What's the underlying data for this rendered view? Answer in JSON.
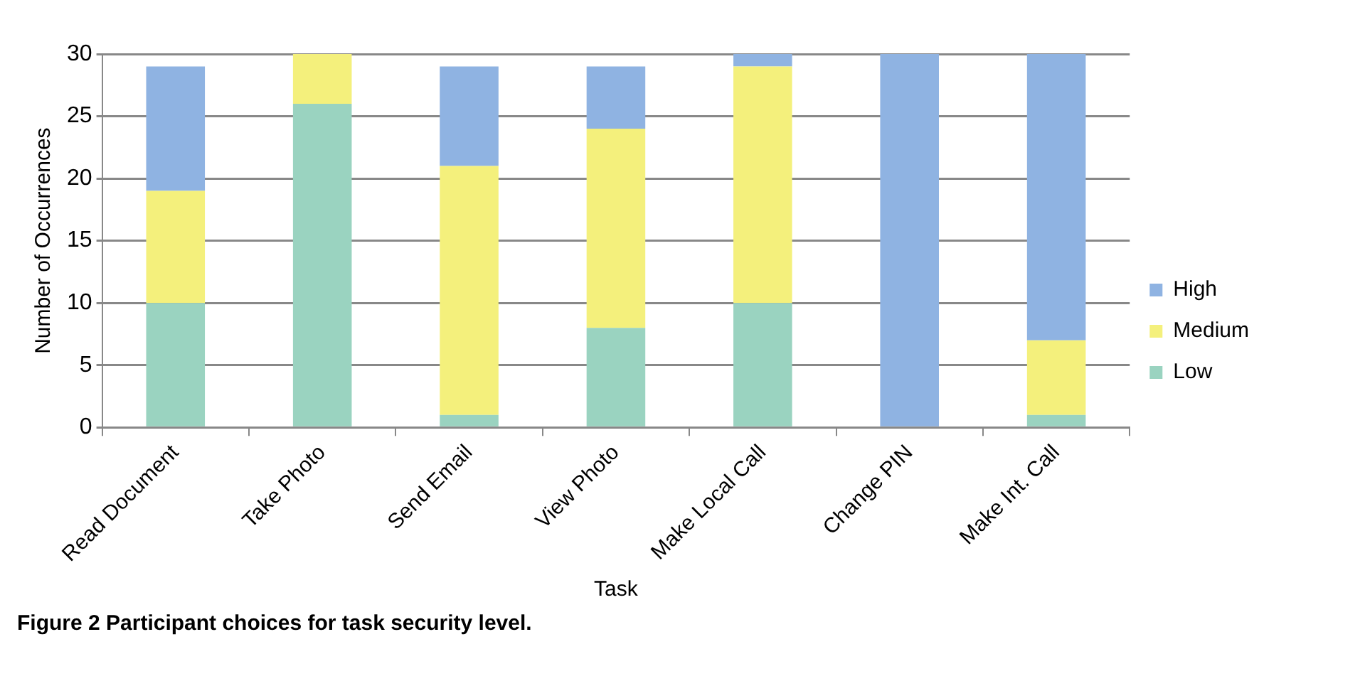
{
  "chart_data": {
    "type": "bar",
    "stacked": true,
    "xlabel": "Task",
    "ylabel": "Number of Occurrences",
    "categories": [
      "Read Document",
      "Take Photo",
      "Send Email",
      "View Photo",
      "Make Local Call",
      "Change PIN",
      "Make Int. Call"
    ],
    "series": [
      {
        "name": "Low",
        "color": "#9ad3c0",
        "values": [
          10,
          26,
          1,
          8,
          10,
          0,
          1
        ]
      },
      {
        "name": "Medium",
        "color": "#f4f07c",
        "values": [
          9,
          4,
          20,
          16,
          19,
          0,
          6
        ]
      },
      {
        "name": "High",
        "color": "#8fb3e2",
        "values": [
          10,
          0,
          8,
          5,
          1,
          30,
          23
        ]
      }
    ],
    "ylim": [
      0,
      30
    ],
    "yticks": [
      0,
      5,
      10,
      15,
      20,
      25,
      30
    ],
    "grid": "y",
    "legend": "right",
    "annotations": [
      "Figure 2  Participant choices for task security level."
    ]
  }
}
